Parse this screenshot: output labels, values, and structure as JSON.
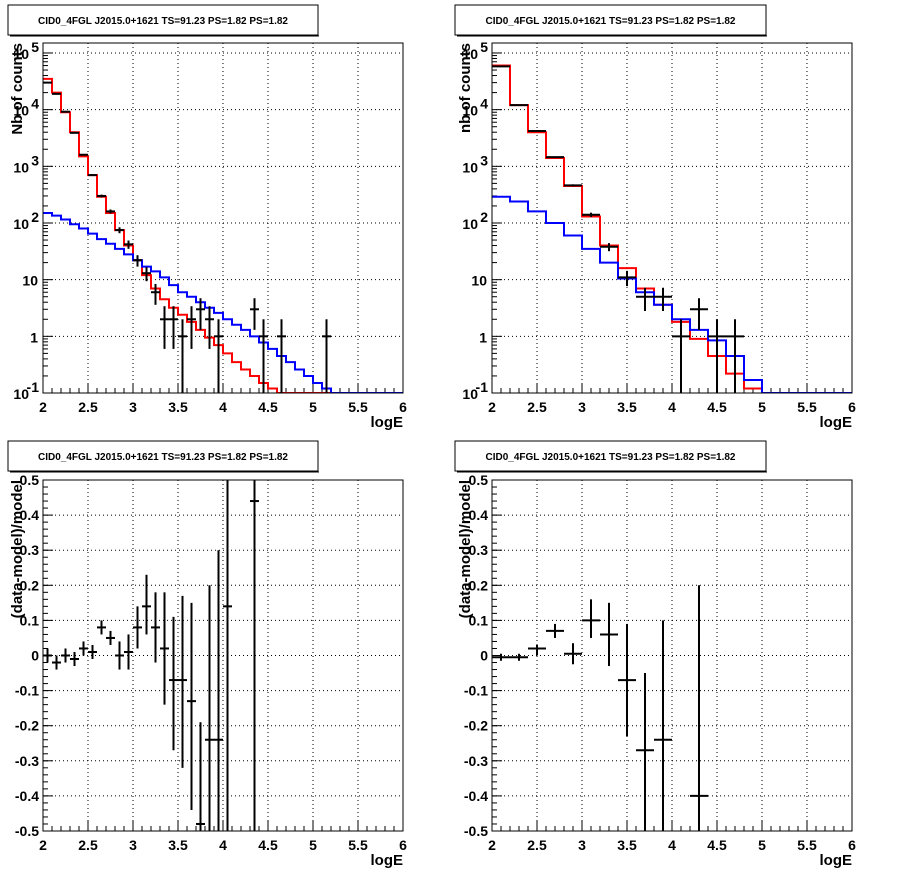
{
  "chart_data": [
    {
      "type": "line",
      "title": "CID0_4FGL J2015.0+1621 TS=91.23 PS=1.82 PS=1.82",
      "xlabel": "logE",
      "ylabel": "Nb of counts",
      "xlim": [
        2,
        6
      ],
      "ylim": [
        0.1,
        150000
      ],
      "log_y": true,
      "grid": true,
      "x_ticks": [
        "2",
        "2.5",
        "3",
        "3.5",
        "4",
        "4.5",
        "5",
        "5.5",
        "6"
      ],
      "y_ticks": [
        {
          "value": 0.1,
          "base": "10",
          "exp": "-1"
        },
        {
          "value": 1,
          "base": "1",
          "exp": ""
        },
        {
          "value": 10,
          "base": "10",
          "exp": ""
        },
        {
          "value": 100,
          "base": "10",
          "exp": "2"
        },
        {
          "value": 1000,
          "base": "10",
          "exp": "3"
        },
        {
          "value": 10000,
          "base": "10",
          "exp": "4"
        },
        {
          "value": 100000,
          "base": "10",
          "exp": "5"
        }
      ],
      "bin_width": 0.1,
      "bin_edges_start": 2.0,
      "series": [
        {
          "color": "#ff0000",
          "kind": "hist",
          "values": [
            35000,
            20000,
            9000,
            4000,
            1500,
            700,
            290,
            150,
            75,
            40,
            22,
            12,
            7,
            4.5,
            3.2,
            2.4,
            1.8,
            1.3,
            0.95,
            0.7,
            0.5,
            0.35,
            0.26,
            0.2,
            0.15,
            0.12,
            0.1,
            0.1,
            0.1,
            0.1,
            0.1,
            0.1,
            0.1,
            0.1,
            0.1,
            0.1,
            0.1,
            0.1,
            0.1,
            0.1
          ]
        },
        {
          "color": "#0000ff",
          "kind": "hist",
          "values": [
            150,
            135,
            115,
            95,
            80,
            65,
            52,
            43,
            35,
            28,
            22,
            17,
            14,
            11,
            8,
            6,
            5,
            4,
            3.2,
            2.6,
            2.0,
            1.6,
            1.3,
            1.0,
            0.78,
            0.6,
            0.45,
            0.35,
            0.26,
            0.2,
            0.15,
            0.12,
            0.1,
            0.1,
            0.1,
            0.1,
            0.1,
            0.1,
            0.1,
            0.1
          ]
        },
        {
          "color": "#000000",
          "kind": "points",
          "points": [
            {
              "x": 2.05,
              "y": 30000,
              "lo": 29800,
              "hi": 30200
            },
            {
              "x": 2.15,
              "y": 19000,
              "lo": 18860,
              "hi": 19140
            },
            {
              "x": 2.25,
              "y": 9200,
              "lo": 9100,
              "hi": 9300
            },
            {
              "x": 2.35,
              "y": 3900,
              "lo": 3840,
              "hi": 3960
            },
            {
              "x": 2.45,
              "y": 1600,
              "lo": 1560,
              "hi": 1640
            },
            {
              "x": 2.55,
              "y": 700,
              "lo": 674,
              "hi": 726
            },
            {
              "x": 2.65,
              "y": 300,
              "lo": 283,
              "hi": 317
            },
            {
              "x": 2.75,
              "y": 160,
              "lo": 147,
              "hi": 173
            },
            {
              "x": 2.85,
              "y": 75,
              "lo": 66,
              "hi": 84
            },
            {
              "x": 2.95,
              "y": 42,
              "lo": 35,
              "hi": 49
            },
            {
              "x": 3.05,
              "y": 22,
              "lo": 17,
              "hi": 27
            },
            {
              "x": 3.15,
              "y": 13,
              "lo": 9.4,
              "hi": 16.6
            },
            {
              "x": 3.25,
              "y": 6,
              "lo": 3.6,
              "hi": 8.4
            },
            {
              "x": 3.35,
              "y": 2,
              "lo": 0.6,
              "hi": 3.4
            },
            {
              "x": 3.45,
              "y": 2,
              "lo": 0.6,
              "hi": 3.4
            },
            {
              "x": 3.55,
              "y": 1,
              "lo": 0.1,
              "hi": 2.0
            },
            {
              "x": 3.65,
              "y": 2,
              "lo": 0.6,
              "hi": 3.4
            },
            {
              "x": 3.75,
              "y": 3,
              "lo": 1.3,
              "hi": 4.7
            },
            {
              "x": 3.85,
              "y": 2,
              "lo": 0.6,
              "hi": 3.4
            },
            {
              "x": 3.95,
              "y": 1,
              "lo": 0.1,
              "hi": 2.0
            },
            {
              "x": 4.35,
              "y": 3,
              "lo": 1.3,
              "hi": 4.7
            },
            {
              "x": 4.45,
              "y": 1,
              "lo": 0.1,
              "hi": 2.0
            },
            {
              "x": 4.65,
              "y": 1,
              "lo": 0.1,
              "hi": 2.0
            },
            {
              "x": 5.15,
              "y": 1,
              "lo": 0.1,
              "hi": 2.0
            }
          ]
        }
      ]
    },
    {
      "type": "line",
      "title": "CID0_4FGL J2015.0+1621 TS=91.23 PS=1.82 PS=1.82",
      "xlabel": "logE",
      "ylabel": "nb of counts",
      "xlim": [
        2,
        6
      ],
      "ylim": [
        0.1,
        150000
      ],
      "log_y": true,
      "grid": true,
      "x_ticks": [
        "2",
        "2.5",
        "3",
        "3.5",
        "4",
        "4.5",
        "5",
        "5.5",
        "6"
      ],
      "y_ticks": [
        {
          "value": 0.1,
          "base": "10",
          "exp": "-1"
        },
        {
          "value": 1,
          "base": "1",
          "exp": ""
        },
        {
          "value": 10,
          "base": "10",
          "exp": ""
        },
        {
          "value": 100,
          "base": "10",
          "exp": "2"
        },
        {
          "value": 1000,
          "base": "10",
          "exp": "3"
        },
        {
          "value": 10000,
          "base": "10",
          "exp": "4"
        },
        {
          "value": 100000,
          "base": "10",
          "exp": "5"
        }
      ],
      "bin_width": 0.2,
      "bin_edges_start": 2.0,
      "series": [
        {
          "color": "#ff0000",
          "kind": "hist",
          "values": [
            60000,
            12000,
            4000,
            1400,
            450,
            130,
            40,
            16,
            7,
            3.6,
            1.8,
            0.9,
            0.45,
            0.22,
            0.12,
            0.1,
            0.1,
            0.1,
            0.1,
            0.1
          ]
        },
        {
          "color": "#0000ff",
          "kind": "hist",
          "values": [
            290,
            240,
            160,
            100,
            60,
            35,
            20,
            10.5,
            6,
            3.6,
            2.0,
            1.3,
            0.85,
            0.45,
            0.17,
            0.1,
            0.1,
            0.1,
            0.1,
            0.1
          ]
        },
        {
          "color": "#000000",
          "kind": "points",
          "points": [
            {
              "x": 2.1,
              "y": 58000,
              "lo": 57760,
              "hi": 58240
            },
            {
              "x": 2.3,
              "y": 12000,
              "lo": 11890,
              "hi": 12110
            },
            {
              "x": 2.5,
              "y": 4200,
              "lo": 4135,
              "hi": 4265
            },
            {
              "x": 2.7,
              "y": 1450,
              "lo": 1412,
              "hi": 1488
            },
            {
              "x": 2.9,
              "y": 460,
              "lo": 439,
              "hi": 481
            },
            {
              "x": 3.1,
              "y": 140,
              "lo": 128,
              "hi": 152
            },
            {
              "x": 3.3,
              "y": 38,
              "lo": 31.8,
              "hi": 44.2
            },
            {
              "x": 3.5,
              "y": 11,
              "lo": 7.7,
              "hi": 14.3
            },
            {
              "x": 3.7,
              "y": 5,
              "lo": 2.8,
              "hi": 7.2
            },
            {
              "x": 3.9,
              "y": 5,
              "lo": 2.8,
              "hi": 7.2
            },
            {
              "x": 4.1,
              "y": 1,
              "lo": 0.1,
              "hi": 2.0
            },
            {
              "x": 4.3,
              "y": 3,
              "lo": 1.3,
              "hi": 4.7
            },
            {
              "x": 4.5,
              "y": 1,
              "lo": 0.1,
              "hi": 2.0
            },
            {
              "x": 4.7,
              "y": 1,
              "lo": 0.1,
              "hi": 2.0
            }
          ]
        }
      ]
    },
    {
      "type": "scatter",
      "title": "CID0_4FGL J2015.0+1621 TS=91.23 PS=1.82 PS=1.82",
      "xlabel": "logE",
      "ylabel": "(data-model)/model",
      "xlim": [
        2,
        6
      ],
      "ylim": [
        -0.5,
        0.5
      ],
      "log_y": false,
      "grid": true,
      "x_ticks": [
        "2",
        "2.5",
        "3",
        "3.5",
        "4",
        "4.5",
        "5",
        "5.5",
        "6"
      ],
      "y_ticks": [
        {
          "value": -0.5,
          "label": "-0.5"
        },
        {
          "value": -0.4,
          "label": "-0.4"
        },
        {
          "value": -0.3,
          "label": "-0.3"
        },
        {
          "value": -0.2,
          "label": "-0.2"
        },
        {
          "value": -0.1,
          "label": "-0.1"
        },
        {
          "value": 0,
          "label": "0"
        },
        {
          "value": 0.1,
          "label": "0.1"
        },
        {
          "value": 0.2,
          "label": "0.2"
        },
        {
          "value": 0.3,
          "label": "0.3"
        },
        {
          "value": 0.4,
          "label": "0.4"
        },
        {
          "value": 0.5,
          "label": "0.5"
        }
      ],
      "series": [
        {
          "color": "#000000",
          "kind": "points",
          "xerr": 0.05,
          "points": [
            {
              "x": 2.05,
              "y": 0.0,
              "lo": -0.02,
              "hi": 0.02
            },
            {
              "x": 2.15,
              "y": -0.02,
              "lo": -0.04,
              "hi": 0.0
            },
            {
              "x": 2.25,
              "y": 0.0,
              "lo": -0.02,
              "hi": 0.02
            },
            {
              "x": 2.35,
              "y": -0.01,
              "lo": -0.03,
              "hi": 0.01
            },
            {
              "x": 2.45,
              "y": 0.02,
              "lo": 0.0,
              "hi": 0.04
            },
            {
              "x": 2.55,
              "y": 0.01,
              "lo": -0.01,
              "hi": 0.03
            },
            {
              "x": 2.65,
              "y": 0.08,
              "lo": 0.06,
              "hi": 0.1
            },
            {
              "x": 2.75,
              "y": 0.05,
              "lo": 0.03,
              "hi": 0.07
            },
            {
              "x": 2.85,
              "y": 0.0,
              "lo": -0.04,
              "hi": 0.04
            },
            {
              "x": 2.95,
              "y": 0.01,
              "lo": -0.04,
              "hi": 0.06
            },
            {
              "x": 3.05,
              "y": 0.08,
              "lo": 0.02,
              "hi": 0.14
            },
            {
              "x": 3.15,
              "y": 0.14,
              "lo": 0.06,
              "hi": 0.23
            },
            {
              "x": 3.25,
              "y": 0.08,
              "lo": -0.02,
              "hi": 0.18
            },
            {
              "x": 3.35,
              "y": 0.02,
              "lo": -0.14,
              "hi": 0.18
            },
            {
              "x": 3.45,
              "y": -0.07,
              "lo": -0.27,
              "hi": 0.11
            },
            {
              "x": 3.55,
              "y": -0.07,
              "lo": -0.32,
              "hi": 0.17
            },
            {
              "x": 3.65,
              "y": -0.13,
              "lo": -0.44,
              "hi": 0.15
            },
            {
              "x": 3.75,
              "y": -0.48,
              "lo": -0.5,
              "hi": -0.19
            },
            {
              "x": 3.85,
              "y": -0.24,
              "lo": -0.5,
              "hi": 0.2
            },
            {
              "x": 3.95,
              "y": -0.24,
              "lo": -0.5,
              "hi": 0.3
            },
            {
              "x": 4.05,
              "y": 0.14,
              "lo": -0.5,
              "hi": 0.5
            },
            {
              "x": 4.35,
              "y": 0.44,
              "lo": -0.5,
              "hi": 0.5
            }
          ]
        }
      ]
    },
    {
      "type": "scatter",
      "title": "CID0_4FGL J2015.0+1621 TS=91.23 PS=1.82 PS=1.82",
      "xlabel": "logE",
      "ylabel": "(data-model)/model",
      "xlim": [
        2,
        6
      ],
      "ylim": [
        -0.5,
        0.5
      ],
      "log_y": false,
      "grid": true,
      "x_ticks": [
        "2",
        "2.5",
        "3",
        "3.5",
        "4",
        "4.5",
        "5",
        "5.5",
        "6"
      ],
      "y_ticks": [
        {
          "value": -0.5,
          "label": "-0.5"
        },
        {
          "value": -0.4,
          "label": "-0.4"
        },
        {
          "value": -0.3,
          "label": "-0.3"
        },
        {
          "value": -0.2,
          "label": "-0.2"
        },
        {
          "value": -0.1,
          "label": "-0.1"
        },
        {
          "value": 0,
          "label": "0"
        },
        {
          "value": 0.1,
          "label": "0.1"
        },
        {
          "value": 0.2,
          "label": "0.2"
        },
        {
          "value": 0.3,
          "label": "0.3"
        },
        {
          "value": 0.4,
          "label": "0.4"
        },
        {
          "value": 0.5,
          "label": "0.5"
        }
      ],
      "series": [
        {
          "color": "#000000",
          "kind": "points",
          "xerr": 0.1,
          "points": [
            {
              "x": 2.1,
              "y": -0.005,
              "lo": -0.015,
              "hi": 0.005
            },
            {
              "x": 2.3,
              "y": -0.005,
              "lo": -0.015,
              "hi": 0.005
            },
            {
              "x": 2.5,
              "y": 0.02,
              "lo": 0.0,
              "hi": 0.03
            },
            {
              "x": 2.7,
              "y": 0.07,
              "lo": 0.05,
              "hi": 0.09
            },
            {
              "x": 2.9,
              "y": 0.005,
              "lo": -0.025,
              "hi": 0.035
            },
            {
              "x": 3.1,
              "y": 0.1,
              "lo": 0.05,
              "hi": 0.16
            },
            {
              "x": 3.3,
              "y": 0.06,
              "lo": -0.03,
              "hi": 0.15
            },
            {
              "x": 3.5,
              "y": -0.07,
              "lo": -0.23,
              "hi": 0.09
            },
            {
              "x": 3.7,
              "y": -0.27,
              "lo": -0.5,
              "hi": -0.05
            },
            {
              "x": 3.9,
              "y": -0.24,
              "lo": -0.5,
              "hi": 0.1
            },
            {
              "x": 4.3,
              "y": -0.4,
              "lo": -0.5,
              "hi": 0.2
            }
          ]
        }
      ]
    }
  ]
}
